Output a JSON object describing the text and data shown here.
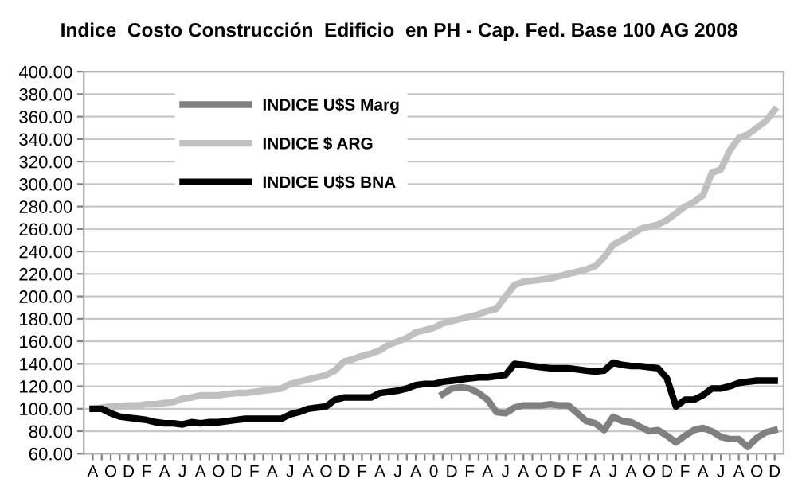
{
  "chart_data": {
    "type": "line",
    "title": "Indice  Costo Construcción  Edificio  en PH - Cap. Fed. Base 100 AG 2008",
    "categories": [
      "A",
      null,
      "O",
      null,
      "D",
      null,
      "F",
      null,
      "A",
      null,
      "J",
      null,
      "A",
      null,
      "O",
      null,
      "D",
      null,
      "F",
      null,
      "A",
      null,
      "J",
      null,
      "A",
      null,
      "O",
      null,
      "D",
      null,
      "F",
      null,
      "A",
      null,
      "J",
      null,
      "A",
      null,
      "0",
      null,
      "D",
      null,
      "F",
      null,
      "A",
      null,
      "J",
      null,
      "A",
      null,
      "O",
      null,
      "D",
      null,
      "F",
      null,
      "A",
      null,
      "J",
      null,
      "A",
      null,
      "O",
      null,
      "D",
      null,
      "F",
      null,
      "A",
      null,
      "J",
      null,
      "A",
      null,
      "O",
      null,
      "D"
    ],
    "series": [
      {
        "name": "INDICE U$S Marg",
        "color": "#808080",
        "values": [
          null,
          null,
          null,
          null,
          null,
          null,
          null,
          null,
          null,
          null,
          null,
          null,
          null,
          null,
          null,
          null,
          null,
          null,
          null,
          null,
          null,
          null,
          null,
          null,
          null,
          null,
          null,
          null,
          null,
          null,
          null,
          null,
          null,
          null,
          null,
          null,
          null,
          null,
          null,
          113,
          118,
          119,
          118,
          114,
          108,
          97,
          96,
          101,
          103,
          103,
          103,
          104,
          103,
          103,
          96,
          89,
          87,
          81,
          93,
          89,
          88,
          84,
          80,
          81,
          76,
          70,
          76,
          81,
          83,
          80,
          75,
          73,
          73,
          66,
          74,
          79,
          81
        ]
      },
      {
        "name": "INDICE $ ARG",
        "color": "#c0c0c0",
        "values": [
          100,
          101,
          102,
          102,
          103,
          103,
          104,
          104,
          105,
          106,
          109,
          110,
          112,
          112,
          112,
          113,
          114,
          114,
          115,
          116,
          117,
          118,
          122,
          124,
          126,
          128,
          130,
          134,
          142,
          144,
          147,
          149,
          152,
          157,
          160,
          163,
          168,
          170,
          172,
          176,
          178,
          180,
          182,
          184,
          187,
          189,
          200,
          210,
          213,
          214,
          215,
          216,
          218,
          220,
          222,
          224,
          227,
          235,
          246,
          250,
          255,
          260,
          262,
          264,
          268,
          274,
          280,
          284,
          290,
          310,
          313,
          330,
          341,
          344,
          350,
          356,
          366
        ]
      },
      {
        "name": "INDICE U$S BNA",
        "color": "#000000",
        "values": [
          100,
          100,
          96,
          93,
          92,
          91,
          90,
          88,
          87,
          87,
          86,
          88,
          87,
          88,
          88,
          89,
          90,
          91,
          91,
          91,
          91,
          91,
          95,
          97,
          100,
          101,
          102,
          108,
          110,
          110,
          110,
          110,
          114,
          115,
          116,
          118,
          121,
          122,
          122,
          124,
          125,
          126,
          127,
          128,
          128,
          129,
          130,
          140,
          139,
          138,
          137,
          136,
          136,
          136,
          135,
          134,
          133,
          134,
          141,
          139,
          138,
          138,
          137,
          136,
          127,
          102,
          108,
          108,
          112,
          118,
          118,
          120,
          123,
          124,
          125,
          125,
          125
        ]
      }
    ],
    "ylim": [
      60,
      400
    ],
    "yticks": [
      {
        "value": 60,
        "label": "60.00"
      },
      {
        "value": 80,
        "label": "80.00"
      },
      {
        "value": 100,
        "label": "100.00"
      },
      {
        "value": 120,
        "label": "120.00"
      },
      {
        "value": 140,
        "label": "140.00"
      },
      {
        "value": 160,
        "label": "160.00"
      },
      {
        "value": 180,
        "label": "180.00"
      },
      {
        "value": 200,
        "label": "200.00"
      },
      {
        "value": 220,
        "label": "220.00"
      },
      {
        "value": 240,
        "label": "240.00"
      },
      {
        "value": 260,
        "label": "260.00"
      },
      {
        "value": 280,
        "label": "280.00"
      },
      {
        "value": 300,
        "label": "300.00"
      },
      {
        "value": 320,
        "label": "320.00"
      },
      {
        "value": 340,
        "label": "340.00"
      },
      {
        "value": 360,
        "label": "360.00"
      },
      {
        "value": 380,
        "label": "380.00"
      },
      {
        "value": 400,
        "label": "400.00"
      }
    ],
    "grid": "y",
    "legend": "top left",
    "marker": "none",
    "line_style": "solid"
  }
}
